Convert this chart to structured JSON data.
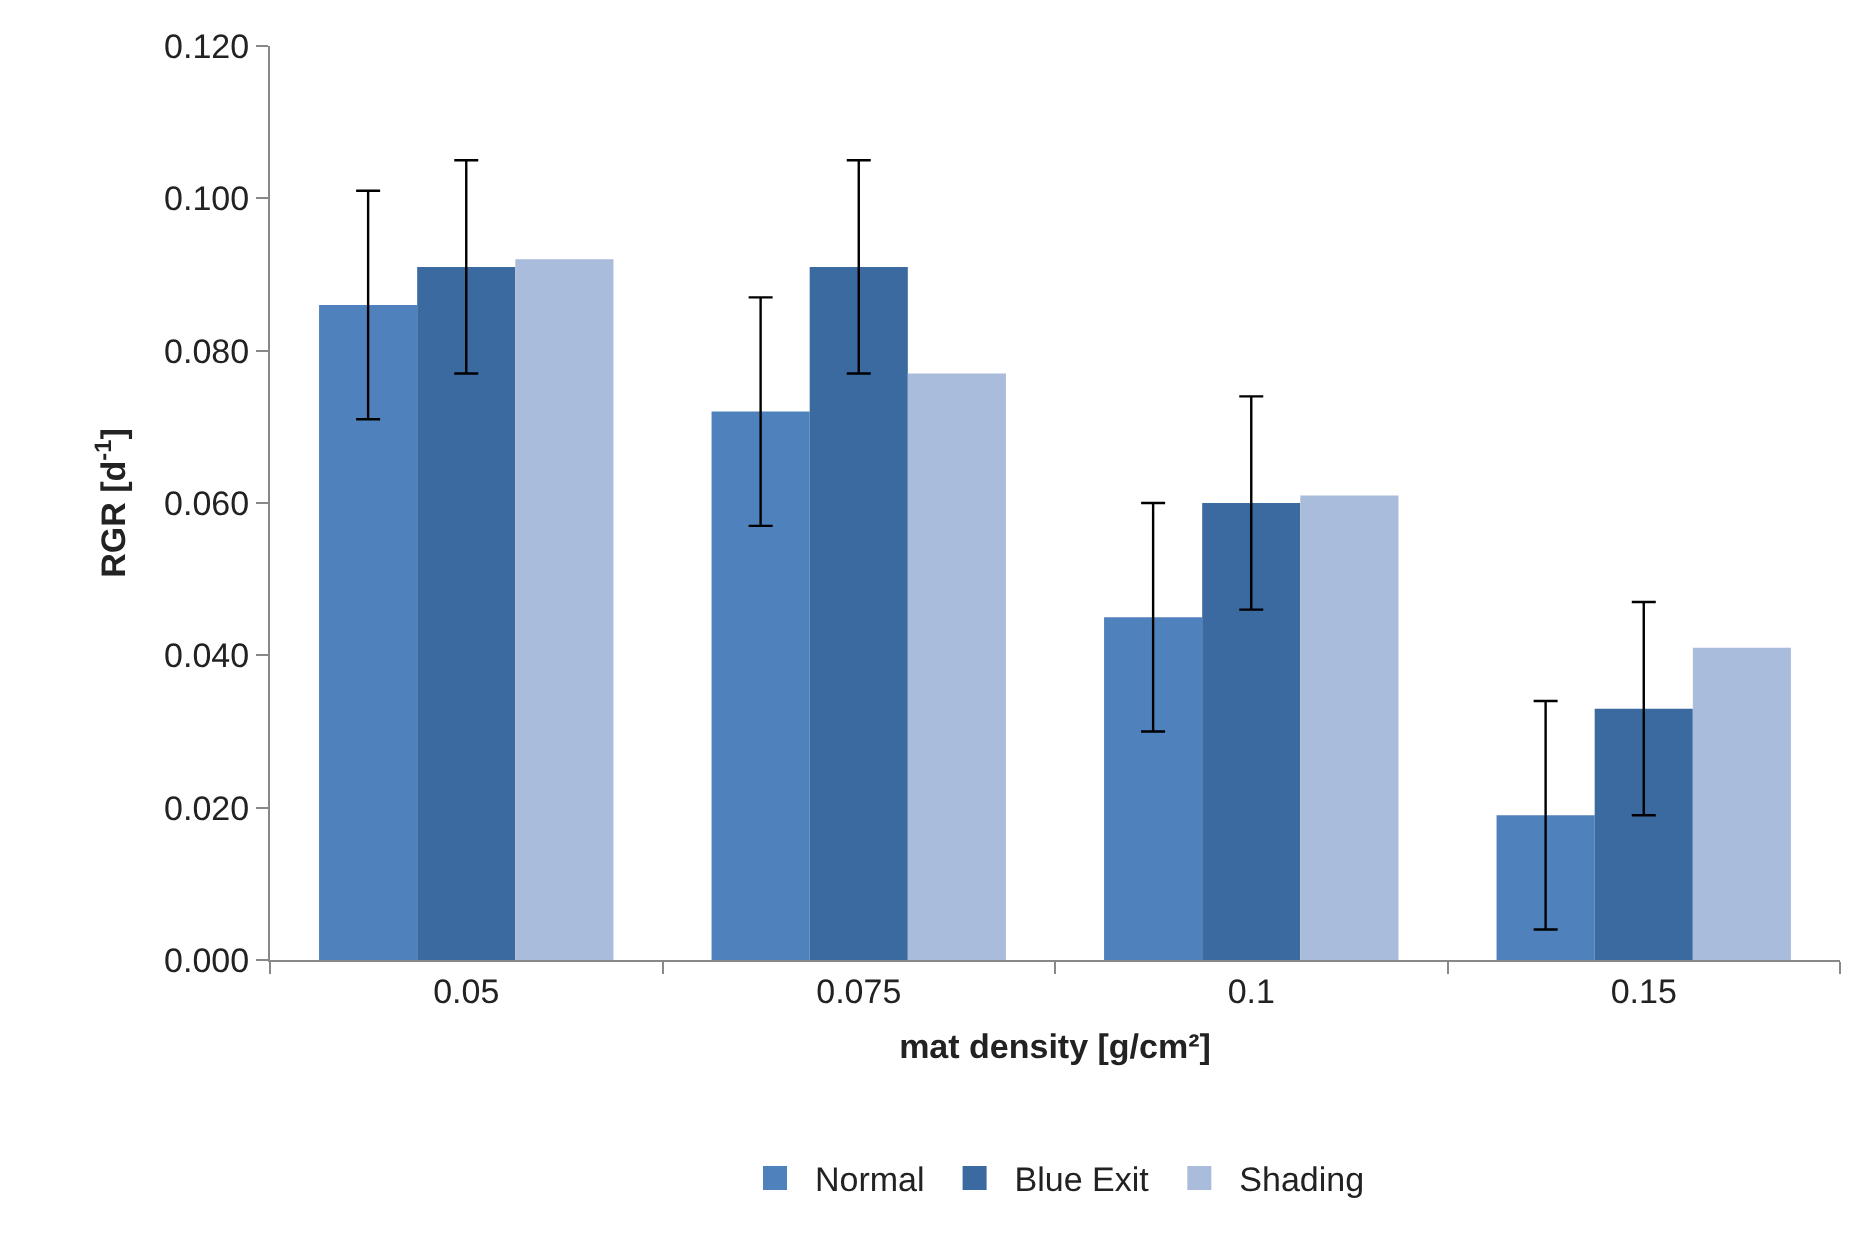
{
  "chart_data": {
    "type": "bar",
    "xlabel": "mat density [g/cm²]",
    "ylabel": "RGR [d$^{-1}$]",
    "categories": [
      "0.05",
      "0.075",
      "0.1",
      "0.15"
    ],
    "series": [
      {
        "name": "Normal",
        "color": "#4f81bd",
        "values": [
          0.086,
          0.072,
          0.045,
          0.019
        ],
        "errors": [
          0.015,
          0.015,
          0.015,
          0.015
        ]
      },
      {
        "name": "Blue Exit",
        "color": "#3a6aa0",
        "values": [
          0.091,
          0.091,
          0.06,
          0.033
        ],
        "errors": [
          0.014,
          0.014,
          0.014,
          0.014
        ]
      },
      {
        "name": "Shading",
        "color": "#a9bcdc",
        "values": [
          0.092,
          0.077,
          0.061,
          0.041
        ]
      }
    ],
    "ylim": [
      0,
      0.12
    ],
    "yticks": [
      {
        "value": 0,
        "label": "0.000"
      },
      {
        "value": 0.02,
        "label": "0.020"
      },
      {
        "value": 0.04,
        "label": "0.040"
      },
      {
        "value": 0.06,
        "label": "0.060"
      },
      {
        "value": 0.08,
        "label": "0.080"
      },
      {
        "value": 0.1,
        "label": "0.100"
      },
      {
        "value": 0.12,
        "label": "0.120"
      }
    ],
    "grid": false,
    "legend": "bottom"
  }
}
